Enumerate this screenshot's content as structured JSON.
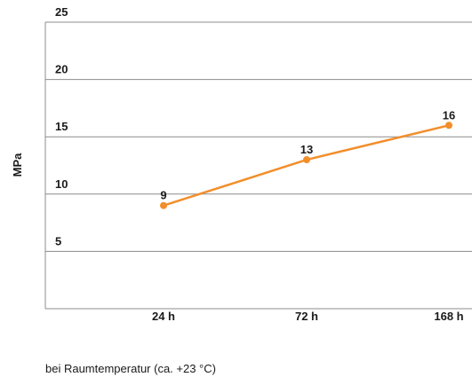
{
  "chart_data": {
    "type": "line",
    "categories": [
      "24 h",
      "72 h",
      "168 h"
    ],
    "series": [
      {
        "values": [
          9,
          13,
          16
        ],
        "color": "#f28e2b"
      }
    ],
    "ylabel": "MPa",
    "xlabel": "bei Raumtemperatur (ca. +23 °C)",
    "ylim": [
      0,
      25
    ],
    "yticks": [
      5,
      10,
      15,
      20,
      25
    ],
    "grid": true
  }
}
